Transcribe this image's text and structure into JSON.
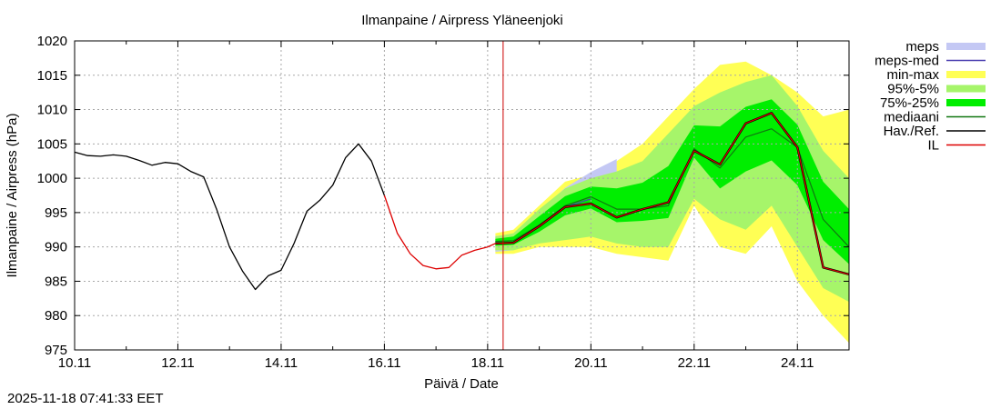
{
  "chart_data": {
    "type": "line",
    "title": "Ilmanpaine / Airpress Yläneenjoki",
    "xlabel": "Päivä / Date",
    "ylabel": "Ilmanpaine / Airpress (hPa)",
    "ylim": [
      975,
      1020
    ],
    "xlim_days": [
      0,
      15
    ],
    "x_tick_labels": [
      "10.11",
      "12.11",
      "14.11",
      "16.11",
      "18.11",
      "20.11",
      "22.11",
      "24.11"
    ],
    "x_tick_days": [
      0,
      2,
      4,
      6,
      8,
      10,
      12,
      14
    ],
    "y_ticks": [
      975,
      980,
      985,
      990,
      995,
      1000,
      1005,
      1010,
      1015,
      1020
    ],
    "grid": true,
    "forecast_start_day": 8.3,
    "legend_position": "outside-right",
    "legend": [
      {
        "label": "meps",
        "kind": "band",
        "color": "#c4c8f4"
      },
      {
        "label": "meps-med",
        "kind": "line",
        "color": "#4a3fb0"
      },
      {
        "label": "min-max",
        "kind": "band",
        "color": "#ffff55"
      },
      {
        "label": "95%-5%",
        "kind": "band",
        "color": "#a6f56a"
      },
      {
        "label": "75%-25%",
        "kind": "band",
        "color": "#00ee00"
      },
      {
        "label": "mediaani",
        "kind": "line",
        "color": "#117711"
      },
      {
        "label": "Hav./Ref.",
        "kind": "line",
        "color": "#000000"
      },
      {
        "label": "IL",
        "kind": "line",
        "color": "#dd0000"
      }
    ],
    "series": {
      "observed": {
        "name": "Hav./Ref.",
        "x": [
          0,
          0.25,
          0.5,
          0.75,
          1,
          1.25,
          1.5,
          1.75,
          2,
          2.25,
          2.5,
          2.75,
          3,
          3.25,
          3.5,
          3.75,
          4,
          4.25,
          4.5,
          4.75,
          5,
          5.25,
          5.5,
          5.75,
          6
        ],
        "y": [
          1003.8,
          1003.3,
          1003.2,
          1003.4,
          1003.2,
          1002.6,
          1001.9,
          1002.3,
          1002.1,
          1001.0,
          1000.2,
          995.5,
          990.0,
          986.5,
          983.8,
          985.8,
          986.6,
          990.5,
          995.2,
          996.8,
          999.0,
          1003.0,
          1005.0,
          1002.5,
          997.5
        ]
      },
      "il_observed": {
        "name": "IL",
        "x": [
          6,
          6.25,
          6.5,
          6.75,
          7,
          7.25,
          7.5,
          7.75,
          8,
          8.15
        ],
        "y": [
          997.5,
          992.0,
          989.0,
          987.3,
          986.8,
          987.0,
          988.8,
          989.5,
          990.0,
          990.5
        ]
      },
      "il_forecast": {
        "name": "IL",
        "x": [
          8.15,
          8.5,
          9,
          9.5,
          10,
          10.5,
          11,
          11.5,
          12,
          12.5,
          13,
          13.5,
          14,
          14.5,
          15
        ],
        "y": [
          990.5,
          990.6,
          993.0,
          995.8,
          996.3,
          994.3,
          995.5,
          996.5,
          1004.0,
          1002.0,
          1008.0,
          1009.5,
          1004.5,
          987.0,
          986.0
        ]
      },
      "mediaani": {
        "name": "mediaani",
        "x": [
          8.15,
          8.5,
          9,
          9.5,
          10,
          10.5,
          11,
          11.5,
          12,
          12.5,
          13,
          13.5,
          14,
          14.5,
          15
        ],
        "y": [
          990.8,
          990.9,
          993.2,
          996.0,
          997.3,
          995.5,
          995.5,
          996.0,
          1004.3,
          1001.5,
          1006.0,
          1007.2,
          1004.5,
          994.0,
          990.0
        ]
      },
      "meps_med": {
        "name": "meps-med",
        "x": [
          8.15,
          8.5,
          9,
          9.5,
          10
        ],
        "y": [
          990.6,
          990.6,
          993.0,
          995.8,
          997.0
        ]
      },
      "meps_band": {
        "name": "meps",
        "x": [
          8.15,
          8.5,
          9,
          9.5,
          10,
          10.5
        ],
        "lower": [
          989.3,
          989.5,
          991.8,
          994.6,
          995.6,
          995.4
        ],
        "upper": [
          991.6,
          991.8,
          995.2,
          998.6,
          1000.9,
          1002.8
        ]
      },
      "minmax_band": {
        "name": "min-max",
        "x": [
          8.15,
          8.5,
          9,
          9.5,
          10,
          10.5,
          11,
          11.5,
          12,
          12.5,
          13,
          13.5,
          14,
          14.5,
          15
        ],
        "lower": [
          989.0,
          989.0,
          990.0,
          990.0,
          990.0,
          989.0,
          988.5,
          988.0,
          996.0,
          990.0,
          989.0,
          993.0,
          985.0,
          980.0,
          976.0
        ],
        "upper": [
          992.0,
          992.5,
          996.0,
          999.5,
          1000.5,
          1002.5,
          1005.0,
          1009.0,
          1013.0,
          1016.5,
          1017.0,
          1015.0,
          1012.5,
          1009.0,
          1010.0
        ]
      },
      "p95_5_band": {
        "name": "95%-5%",
        "x": [
          8.15,
          8.5,
          9,
          9.5,
          10,
          10.5,
          11,
          11.5,
          12,
          12.5,
          13,
          13.5,
          14,
          14.5,
          15
        ],
        "lower": [
          989.5,
          989.5,
          990.5,
          991.0,
          991.5,
          990.5,
          990.0,
          990.0,
          997.0,
          994.0,
          992.5,
          996.0,
          990.0,
          984.0,
          982.0
        ],
        "upper": [
          991.5,
          992.0,
          995.5,
          998.5,
          1000.0,
          1001.0,
          1002.5,
          1006.5,
          1010.5,
          1012.5,
          1014.0,
          1015.0,
          1010.5,
          1004.0,
          1000.0
        ]
      },
      "p75_25_band": {
        "name": "75%-25%",
        "x": [
          8.15,
          8.5,
          9,
          9.5,
          10,
          10.5,
          11,
          11.5,
          12,
          12.5,
          13,
          13.5,
          14,
          14.5,
          15
        ],
        "lower": [
          990.2,
          990.3,
          992.2,
          994.6,
          995.6,
          993.6,
          993.8,
          994.2,
          1003.0,
          998.5,
          1001.0,
          1002.6,
          999.0,
          991.0,
          987.5
        ]
      }
    }
  },
  "footer": {
    "timestamp": "2025-11-18 07:41:33 EET"
  }
}
